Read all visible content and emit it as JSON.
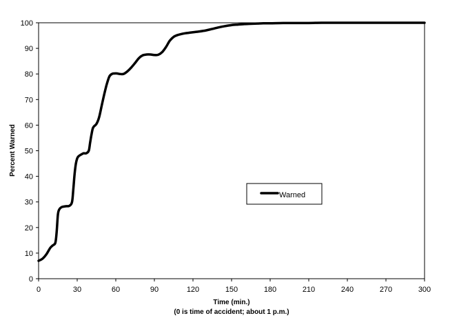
{
  "chart_data": {
    "type": "line",
    "title": "",
    "xlabel": "Time (min.)",
    "xlabel_note": "(0 is time of accident; about 1 p.m.)",
    "ylabel": "Percent Warned",
    "xlim": [
      0,
      300
    ],
    "ylim": [
      0,
      100
    ],
    "x_ticks": [
      0,
      30,
      60,
      90,
      120,
      150,
      180,
      210,
      240,
      270,
      300
    ],
    "y_ticks": [
      0,
      10,
      20,
      30,
      40,
      50,
      60,
      70,
      80,
      90,
      100
    ],
    "grid": false,
    "legend_placement": "center-right",
    "series": [
      {
        "name": "Warned",
        "color": "#000000",
        "x": [
          0,
          3,
          6,
          9,
          11,
          13,
          14,
          15,
          16,
          18,
          21,
          24,
          26,
          27,
          28,
          29,
          30,
          31,
          33,
          35,
          37,
          39,
          40,
          41,
          42,
          43,
          45,
          47,
          49,
          51,
          53,
          55,
          57,
          59,
          61,
          63,
          66,
          69,
          72,
          75,
          78,
          81,
          84,
          87,
          90,
          93,
          96,
          99,
          102,
          105,
          108,
          111,
          114,
          117,
          120,
          125,
          130,
          135,
          140,
          145,
          150,
          155,
          160,
          165,
          170,
          175,
          180,
          190,
          200,
          210,
          220,
          230,
          240,
          250,
          260,
          270,
          280,
          290,
          300
        ],
        "values": [
          7,
          7.8,
          9.5,
          12,
          13,
          14,
          18,
          25,
          27,
          28,
          28.3,
          28.5,
          30,
          35,
          41,
          45,
          47,
          47.8,
          48.5,
          49,
          49,
          50,
          53,
          56,
          58.5,
          59.5,
          60.5,
          63,
          67.5,
          72,
          76,
          79,
          80,
          80.2,
          80.2,
          80,
          80,
          81,
          82.5,
          84.3,
          86.2,
          87.3,
          87.6,
          87.6,
          87.4,
          87.5,
          88.5,
          90.5,
          93,
          94.5,
          95.2,
          95.6,
          95.9,
          96.1,
          96.3,
          96.6,
          97,
          97.6,
          98.2,
          98.7,
          99.1,
          99.3,
          99.5,
          99.6,
          99.7,
          99.8,
          99.8,
          99.9,
          99.9,
          99.9,
          100,
          100,
          100,
          100,
          100,
          100,
          100,
          100,
          100
        ]
      }
    ]
  }
}
